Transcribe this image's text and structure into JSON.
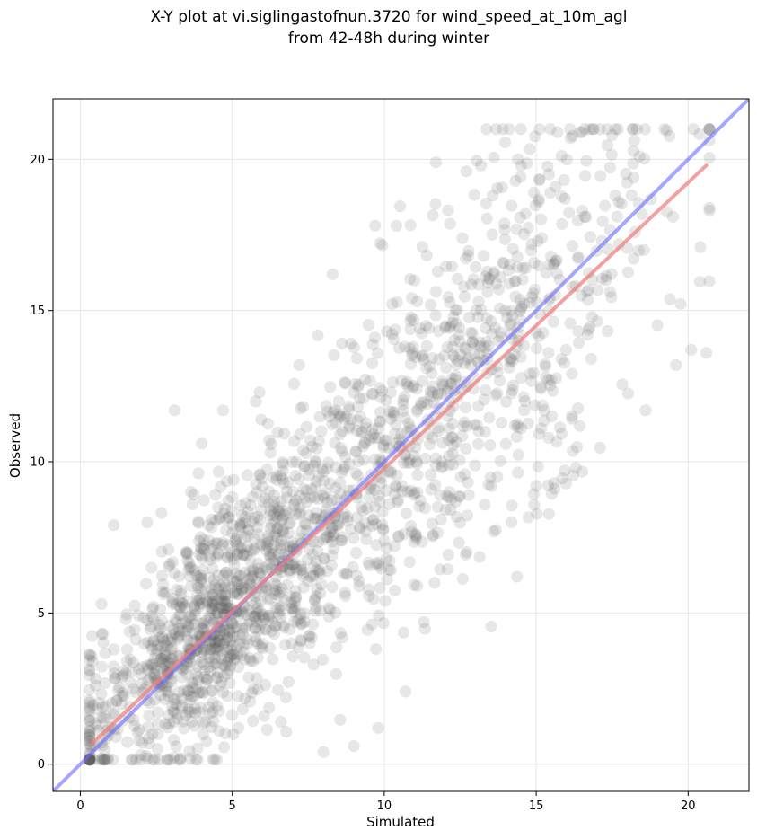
{
  "chart_data": {
    "type": "scatter",
    "title_lines": [
      "X-Y plot at vi.siglingastofnun.3720 for wind_speed_at_10m_agl",
      "from 42-48h during winter"
    ],
    "xlabel": "Simulated",
    "ylabel": "Observed",
    "xlim": [
      -0.9,
      22.0
    ],
    "ylim": [
      -0.9,
      22.0
    ],
    "xticks": [
      0,
      5,
      10,
      15,
      20
    ],
    "yticks": [
      0,
      5,
      10,
      15,
      20
    ],
    "grid": true,
    "point_color": "#555555",
    "point_opacity": 0.14,
    "point_count": 2000,
    "point_seed": 3720,
    "identity_line": {
      "color": "#6b6bff",
      "from": [
        -0.9,
        -0.9
      ],
      "to": [
        22.0,
        22.0
      ]
    },
    "fit_line": {
      "color": "#f08080",
      "from": [
        0.4,
        0.7
      ],
      "to": [
        20.6,
        19.8
      ]
    },
    "sample_points": [
      [
        0.4,
        3.4
      ],
      [
        0.5,
        2.6
      ],
      [
        0.7,
        5.3
      ],
      [
        1.1,
        7.9
      ],
      [
        1.2,
        2.1
      ],
      [
        1.5,
        4.8
      ],
      [
        2.2,
        8.0
      ],
      [
        2.0,
        0.3
      ],
      [
        3.3,
        0.2
      ],
      [
        2.9,
        7.1
      ],
      [
        4.0,
        10.6
      ],
      [
        4.7,
        11.7
      ],
      [
        5.2,
        1.2
      ],
      [
        5.9,
        12.3
      ],
      [
        7.2,
        13.2
      ],
      [
        8.3,
        16.2
      ],
      [
        9.0,
        0.6
      ],
      [
        9.8,
        1.2
      ],
      [
        10.7,
        2.4
      ],
      [
        10.4,
        17.8
      ],
      [
        11.3,
        4.7
      ],
      [
        11.7,
        19.9
      ],
      [
        12.7,
        19.6
      ],
      [
        13.6,
        7.7
      ],
      [
        14.4,
        20.0
      ],
      [
        15.0,
        9.2
      ],
      [
        15.7,
        20.9
      ],
      [
        16.3,
        9.8
      ],
      [
        16.5,
        20.9
      ],
      [
        17.5,
        20.8
      ],
      [
        18.4,
        20.1
      ],
      [
        18.6,
        11.7
      ],
      [
        19.6,
        13.2
      ],
      [
        20.1,
        13.7
      ],
      [
        20.4,
        17.1
      ],
      [
        20.6,
        13.6
      ],
      [
        19.5,
        18.1
      ],
      [
        3.1,
        11.7
      ],
      [
        6.6,
        1.4
      ],
      [
        8.0,
        0.4
      ]
    ]
  }
}
